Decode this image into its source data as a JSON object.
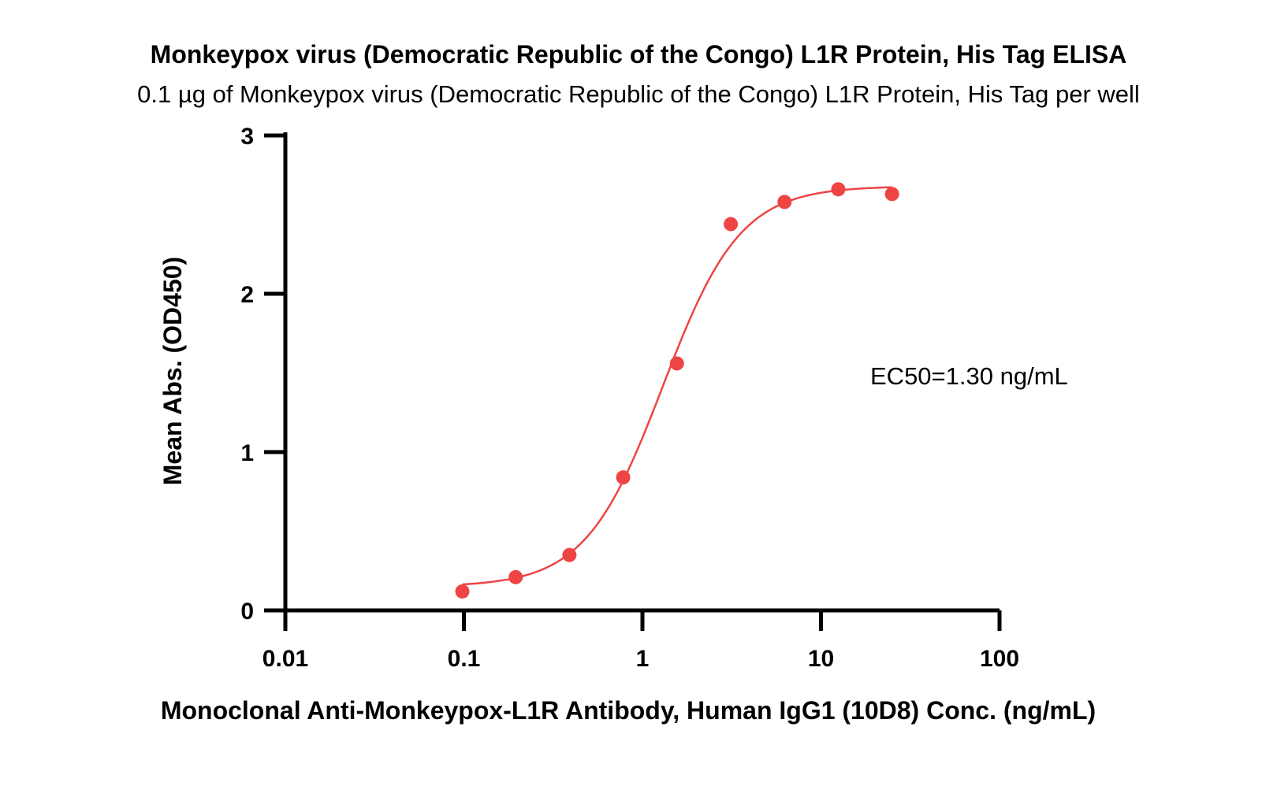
{
  "chart_data": {
    "type": "scatter",
    "title": "Monkeypox virus (Democratic Republic of the Congo) L1R Protein, His Tag ELISA",
    "subtitle": "0.1 µg of Monkeypox virus (Democratic Republic of the Congo) L1R Protein, His Tag per well",
    "xlabel": "Monoclonal Anti-Monkeypox-L1R Antibody, Human IgG1 (10D8) Conc. (ng/mL)",
    "ylabel": "Mean Abs. (OD450)",
    "xscale": "log",
    "xlim": [
      0.01,
      100
    ],
    "ylim": [
      0,
      3
    ],
    "x_ticks": [
      "0.01",
      "0.1",
      "1",
      "10",
      "100"
    ],
    "y_ticks": [
      "0",
      "1",
      "2",
      "3"
    ],
    "annotation": "EC50=1.30 ng/mL",
    "color": "#ee4444",
    "points": [
      {
        "x": 0.098,
        "y": 0.12
      },
      {
        "x": 0.195,
        "y": 0.21
      },
      {
        "x": 0.39,
        "y": 0.35
      },
      {
        "x": 0.78,
        "y": 0.84
      },
      {
        "x": 1.56,
        "y": 1.56
      },
      {
        "x": 3.125,
        "y": 2.44
      },
      {
        "x": 6.25,
        "y": 2.58
      },
      {
        "x": 12.5,
        "y": 2.66
      },
      {
        "x": 25,
        "y": 2.63
      }
    ],
    "fit": {
      "model": "4PL",
      "bottom": 0.15,
      "top": 2.68,
      "ec50": 1.3,
      "hill": 2.0,
      "x_range": [
        0.098,
        25
      ]
    }
  }
}
